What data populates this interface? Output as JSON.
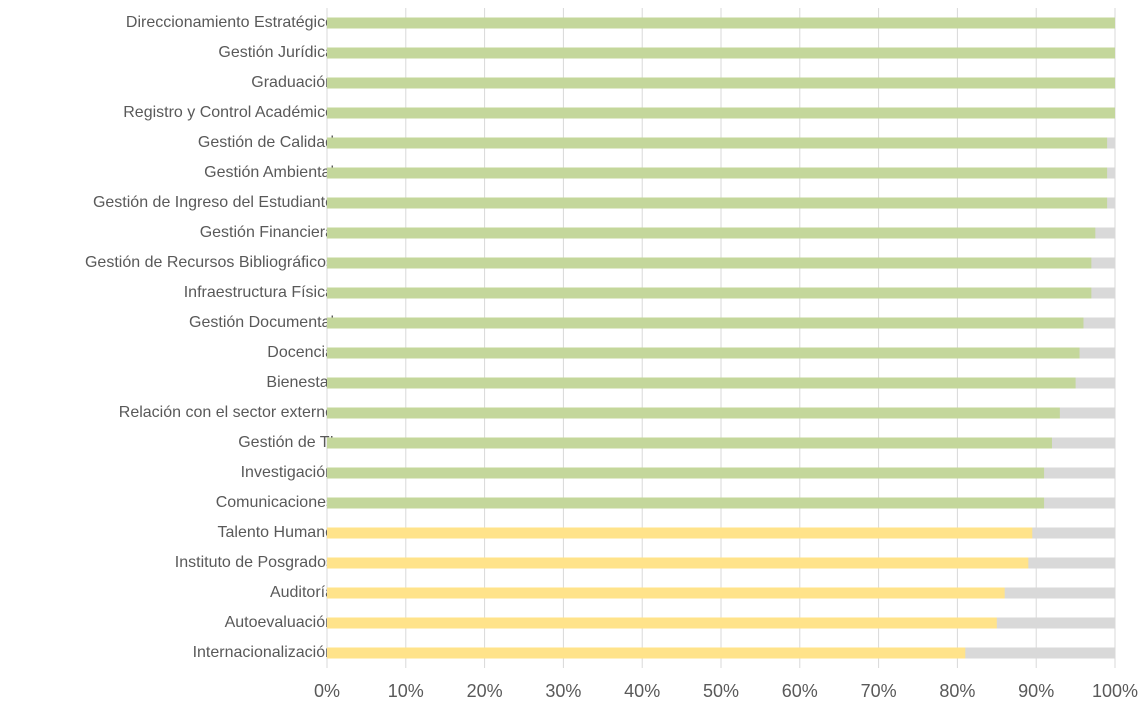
{
  "chart_data": {
    "type": "bar",
    "orientation": "horizontal",
    "categories": [
      "Direccionamiento Estratégico",
      "Gestión Jurídica",
      "Graduación",
      "Registro y Control Académico",
      "Gestión de Calidad",
      "Gestión Ambiental",
      "Gestión de Ingreso del Estudiante",
      "Gestión Financiera",
      "Gestión de Recursos Bibliográficos",
      "Infraestructura Física",
      "Gestión Documental",
      "Docencia",
      "Bienestar",
      "Relación con el sector externo",
      "Gestión de TI",
      "Investigación",
      "Comunicaciones",
      "Talento Humano",
      "Instituto de Posgrados",
      "Auditoría",
      "Autoevaluación",
      "Internacionalización"
    ],
    "values": [
      100,
      100,
      100,
      100,
      99,
      99,
      99,
      97.5,
      97,
      97,
      96,
      95.5,
      95,
      93,
      92,
      91,
      91,
      89.5,
      89,
      86,
      85,
      81
    ],
    "colors": [
      "#c4d79b",
      "#c4d79b",
      "#c4d79b",
      "#c4d79b",
      "#c4d79b",
      "#c4d79b",
      "#c4d79b",
      "#c4d79b",
      "#c4d79b",
      "#c4d79b",
      "#c4d79b",
      "#c4d79b",
      "#c4d79b",
      "#c4d79b",
      "#c4d79b",
      "#c4d79b",
      "#c4d79b",
      "#ffe38a",
      "#ffe38a",
      "#ffe38a",
      "#ffe38a",
      "#ffe38a"
    ],
    "track_color": "#d9d9d9",
    "xlim": [
      0,
      100
    ],
    "xticks": [
      {
        "value": 0,
        "label": "0%"
      },
      {
        "value": 10,
        "label": "10%"
      },
      {
        "value": 20,
        "label": "20%"
      },
      {
        "value": 30,
        "label": "30%"
      },
      {
        "value": 40,
        "label": "40%"
      },
      {
        "value": 50,
        "label": "50%"
      },
      {
        "value": 60,
        "label": "60%"
      },
      {
        "value": 70,
        "label": "70%"
      },
      {
        "value": 80,
        "label": "80%"
      },
      {
        "value": 90,
        "label": "90%"
      },
      {
        "value": 100,
        "label": "100%"
      }
    ],
    "grid": true
  }
}
